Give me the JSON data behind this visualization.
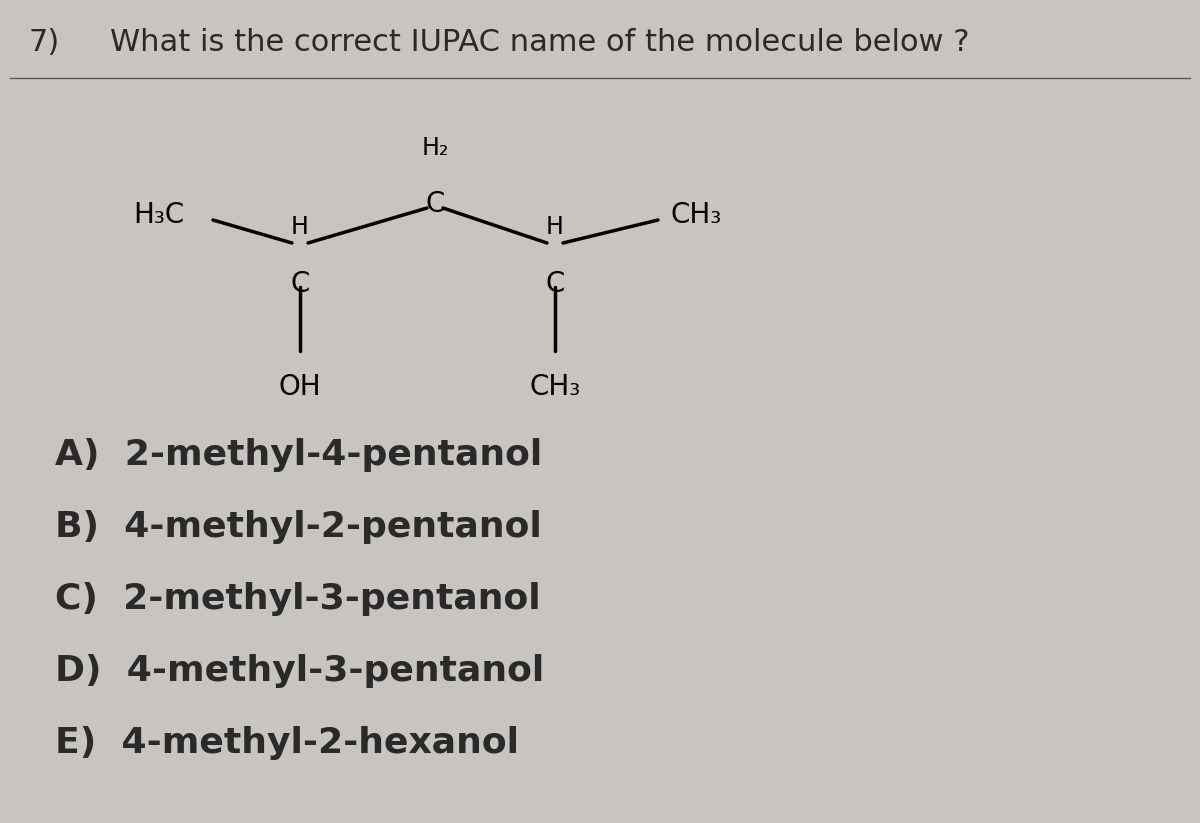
{
  "title_num": "7)",
  "title_text": "What is the correct IUPAC name of the molecule below ?",
  "title_fontsize": 22,
  "background_color": "#c8c4c0",
  "choices": [
    "A)  2-methyl-4-pentanol",
    "B)  4-methyl-2-pentanol",
    "C)  2-methyl-3-pentanol",
    "D)  4-methyl-3-pentanol",
    "E)  4-methyl-2-hexanol"
  ],
  "choices_fontsize": 26,
  "mol_fontsize": 20,
  "mol_fontsize_small": 17,
  "lw": 2.5
}
